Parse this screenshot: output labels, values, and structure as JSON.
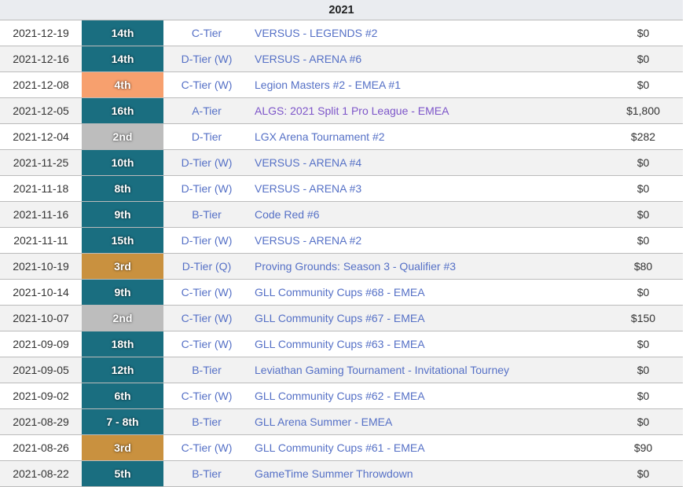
{
  "table": {
    "year_header": "2021",
    "colors": {
      "teal": "#1a6e80",
      "orange": "#f7a06e",
      "silver": "#bdbdbd",
      "bronze": "#c9913f",
      "link_blue": "#5570c6",
      "link_visited_purple": "#7d55c9",
      "header_bg": "#eaecf0",
      "row_stripe_bg": "#f2f2f2",
      "border": "#bbbbbb"
    },
    "rows": [
      {
        "date": "2021-12-19",
        "placement": "14th",
        "placement_color": "teal",
        "tier": "C-Tier",
        "tournament": "VERSUS - LEGENDS #2",
        "visited": false,
        "prize": "$0"
      },
      {
        "date": "2021-12-16",
        "placement": "14th",
        "placement_color": "teal",
        "tier": "D-Tier (W)",
        "tournament": "VERSUS - ARENA #6",
        "visited": false,
        "prize": "$0"
      },
      {
        "date": "2021-12-08",
        "placement": "4th",
        "placement_color": "orange",
        "tier": "C-Tier (W)",
        "tournament": "Legion Masters #2 - EMEA #1",
        "visited": false,
        "prize": "$0"
      },
      {
        "date": "2021-12-05",
        "placement": "16th",
        "placement_color": "teal",
        "tier": "A-Tier",
        "tournament": "ALGS: 2021 Split 1 Pro League - EMEA",
        "visited": true,
        "prize": "$1,800"
      },
      {
        "date": "2021-12-04",
        "placement": "2nd",
        "placement_color": "silver",
        "tier": "D-Tier",
        "tournament": "LGX Arena Tournament #2",
        "visited": false,
        "prize": "$282"
      },
      {
        "date": "2021-11-25",
        "placement": "10th",
        "placement_color": "teal",
        "tier": "D-Tier (W)",
        "tournament": "VERSUS - ARENA #4",
        "visited": false,
        "prize": "$0"
      },
      {
        "date": "2021-11-18",
        "placement": "8th",
        "placement_color": "teal",
        "tier": "D-Tier (W)",
        "tournament": "VERSUS - ARENA #3",
        "visited": false,
        "prize": "$0"
      },
      {
        "date": "2021-11-16",
        "placement": "9th",
        "placement_color": "teal",
        "tier": "B-Tier",
        "tournament": "Code Red #6",
        "visited": false,
        "prize": "$0"
      },
      {
        "date": "2021-11-11",
        "placement": "15th",
        "placement_color": "teal",
        "tier": "D-Tier (W)",
        "tournament": "VERSUS - ARENA #2",
        "visited": false,
        "prize": "$0"
      },
      {
        "date": "2021-10-19",
        "placement": "3rd",
        "placement_color": "bronze",
        "tier": "D-Tier (Q)",
        "tournament": "Proving Grounds: Season 3 - Qualifier #3",
        "visited": false,
        "prize": "$80"
      },
      {
        "date": "2021-10-14",
        "placement": "9th",
        "placement_color": "teal",
        "tier": "C-Tier (W)",
        "tournament": "GLL Community Cups #68 - EMEA",
        "visited": false,
        "prize": "$0"
      },
      {
        "date": "2021-10-07",
        "placement": "2nd",
        "placement_color": "silver",
        "tier": "C-Tier (W)",
        "tournament": "GLL Community Cups #67 - EMEA",
        "visited": false,
        "prize": "$150"
      },
      {
        "date": "2021-09-09",
        "placement": "18th",
        "placement_color": "teal",
        "tier": "C-Tier (W)",
        "tournament": "GLL Community Cups #63 - EMEA",
        "visited": false,
        "prize": "$0"
      },
      {
        "date": "2021-09-05",
        "placement": "12th",
        "placement_color": "teal",
        "tier": "B-Tier",
        "tournament": "Leviathan Gaming Tournament - Invitational Tourney",
        "visited": false,
        "prize": "$0"
      },
      {
        "date": "2021-09-02",
        "placement": "6th",
        "placement_color": "teal",
        "tier": "C-Tier (W)",
        "tournament": "GLL Community Cups #62 - EMEA",
        "visited": false,
        "prize": "$0"
      },
      {
        "date": "2021-08-29",
        "placement": "7 - 8th",
        "placement_color": "teal",
        "tier": "B-Tier",
        "tournament": "GLL Arena Summer - EMEA",
        "visited": false,
        "prize": "$0"
      },
      {
        "date": "2021-08-26",
        "placement": "3rd",
        "placement_color": "bronze",
        "tier": "C-Tier (W)",
        "tournament": "GLL Community Cups #61 - EMEA",
        "visited": false,
        "prize": "$90"
      },
      {
        "date": "2021-08-22",
        "placement": "5th",
        "placement_color": "teal",
        "tier": "B-Tier",
        "tournament": "GameTime Summer Throwdown",
        "visited": false,
        "prize": "$0"
      }
    ]
  }
}
